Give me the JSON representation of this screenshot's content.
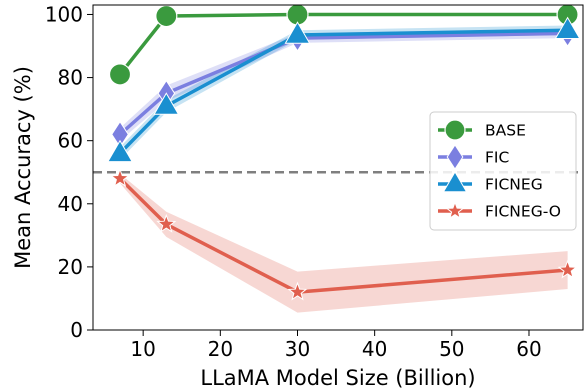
{
  "chart_data": {
    "type": "line",
    "xlabel": "LLaMA Model Size (Billion)",
    "ylabel": "Mean Accuracy (%)",
    "xlim": [
      3.5,
      67
    ],
    "ylim": [
      0,
      103
    ],
    "x_ticks": [
      10,
      20,
      30,
      40,
      50,
      60
    ],
    "y_ticks": [
      0,
      20,
      40,
      60,
      80,
      100
    ],
    "grid": false,
    "legend_position": "right",
    "reference_line": {
      "y": 50,
      "style": "dashed",
      "color": "#7f7f7f"
    },
    "x": [
      7,
      13,
      30,
      65
    ],
    "series": [
      {
        "name": "BASE",
        "values": [
          81,
          99.5,
          100,
          100
        ],
        "band": [
          0,
          0,
          0,
          0
        ],
        "color": "#3a9a3e",
        "marker": "circle"
      },
      {
        "name": "FIC",
        "values": [
          62,
          75,
          92.5,
          94
        ],
        "band": [
          2,
          2.5,
          1.5,
          1.5
        ],
        "color": "#7b7fe0",
        "marker": "diamond"
      },
      {
        "name": "FICNEG",
        "values": [
          56,
          71,
          93.5,
          95
        ],
        "band": [
          2,
          2,
          1.5,
          1.5
        ],
        "color": "#1a8fd0",
        "marker": "triangle"
      },
      {
        "name": "FICNEG-O",
        "values": [
          48,
          33.5,
          12,
          19
        ],
        "band": [
          1.5,
          4,
          6.5,
          6
        ],
        "color": "#e05f4e",
        "marker": "star"
      }
    ]
  }
}
